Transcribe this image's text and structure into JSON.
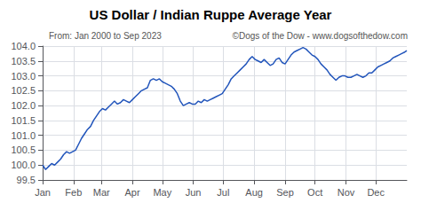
{
  "chart_data": {
    "type": "line",
    "title": "US Dollar / Indian Ruppe Average Year",
    "subtitle": "From: Jan 2000 to Sep 2023",
    "annotation": "©Dogs of the Dow - www.dogsofthedow.com",
    "color": "#2255bb",
    "grid": true,
    "xlim": [
      0,
      365
    ],
    "xticks": [
      {
        "value": 0,
        "label": "Jan"
      },
      {
        "value": 31,
        "label": "Feb"
      },
      {
        "value": 59,
        "label": "Mar"
      },
      {
        "value": 90,
        "label": "Apr"
      },
      {
        "value": 120,
        "label": "May"
      },
      {
        "value": 151,
        "label": "Jun"
      },
      {
        "value": 181,
        "label": "Jul"
      },
      {
        "value": 212,
        "label": "Aug"
      },
      {
        "value": 243,
        "label": "Sep"
      },
      {
        "value": 273,
        "label": "Oct"
      },
      {
        "value": 304,
        "label": "Nov"
      },
      {
        "value": 334,
        "label": "Dec"
      }
    ],
    "ylim": [
      99.5,
      104.0
    ],
    "yticks": [
      99.5,
      {
        "value": 100.0,
        "label": "100.0"
      },
      100.5,
      {
        "value": 101.0,
        "label": "101.0"
      },
      101.5,
      {
        "value": 102.0,
        "label": "102.0"
      },
      102.5,
      {
        "value": 103.0,
        "label": "103.0"
      },
      103.5,
      {
        "value": 104.0,
        "label": "104.0"
      }
    ],
    "x": [
      0,
      3,
      6,
      9,
      12,
      15,
      18,
      21,
      24,
      27,
      30,
      33,
      36,
      39,
      42,
      45,
      48,
      51,
      54,
      57,
      60,
      63,
      66,
      69,
      72,
      75,
      78,
      81,
      84,
      87,
      90,
      93,
      96,
      99,
      102,
      105,
      108,
      111,
      114,
      117,
      120,
      123,
      126,
      129,
      132,
      135,
      138,
      141,
      144,
      147,
      150,
      153,
      156,
      159,
      162,
      165,
      168,
      171,
      174,
      177,
      180,
      183,
      186,
      189,
      192,
      195,
      198,
      201,
      204,
      207,
      210,
      213,
      216,
      219,
      222,
      225,
      228,
      231,
      234,
      237,
      240,
      243,
      246,
      249,
      252,
      255,
      258,
      261,
      264,
      267,
      270,
      273,
      276,
      279,
      282,
      285,
      288,
      291,
      294,
      297,
      300,
      303,
      306,
      309,
      312,
      315,
      318,
      321,
      324,
      327,
      330,
      333,
      336,
      339,
      342,
      345,
      348,
      351,
      354,
      357,
      360,
      363,
      365
    ],
    "values": [
      100.0,
      99.85,
      99.95,
      100.05,
      100.0,
      100.1,
      100.2,
      100.35,
      100.45,
      100.4,
      100.45,
      100.5,
      100.7,
      100.9,
      101.05,
      101.2,
      101.3,
      101.5,
      101.65,
      101.8,
      101.9,
      101.85,
      101.95,
      102.05,
      102.15,
      102.05,
      102.1,
      102.2,
      102.15,
      102.1,
      102.2,
      102.3,
      102.4,
      102.5,
      102.55,
      102.6,
      102.85,
      102.9,
      102.85,
      102.9,
      102.8,
      102.75,
      102.7,
      102.65,
      102.55,
      102.4,
      102.15,
      102.0,
      102.05,
      102.1,
      102.05,
      102.05,
      102.15,
      102.1,
      102.2,
      102.15,
      102.2,
      102.25,
      102.3,
      102.35,
      102.4,
      102.55,
      102.7,
      102.9,
      103.0,
      103.1,
      103.2,
      103.3,
      103.4,
      103.55,
      103.65,
      103.55,
      103.5,
      103.45,
      103.55,
      103.45,
      103.35,
      103.4,
      103.55,
      103.6,
      103.45,
      103.4,
      103.55,
      103.7,
      103.8,
      103.85,
      103.9,
      103.95,
      103.9,
      103.8,
      103.7,
      103.65,
      103.55,
      103.4,
      103.3,
      103.2,
      103.05,
      102.95,
      102.85,
      102.95,
      103.0,
      103.0,
      102.95,
      102.95,
      103.0,
      103.05,
      103.0,
      102.95,
      103.0,
      103.1,
      103.1,
      103.2,
      103.3,
      103.35,
      103.4,
      103.45,
      103.5,
      103.6,
      103.65,
      103.7,
      103.75,
      103.8,
      103.85
    ]
  }
}
